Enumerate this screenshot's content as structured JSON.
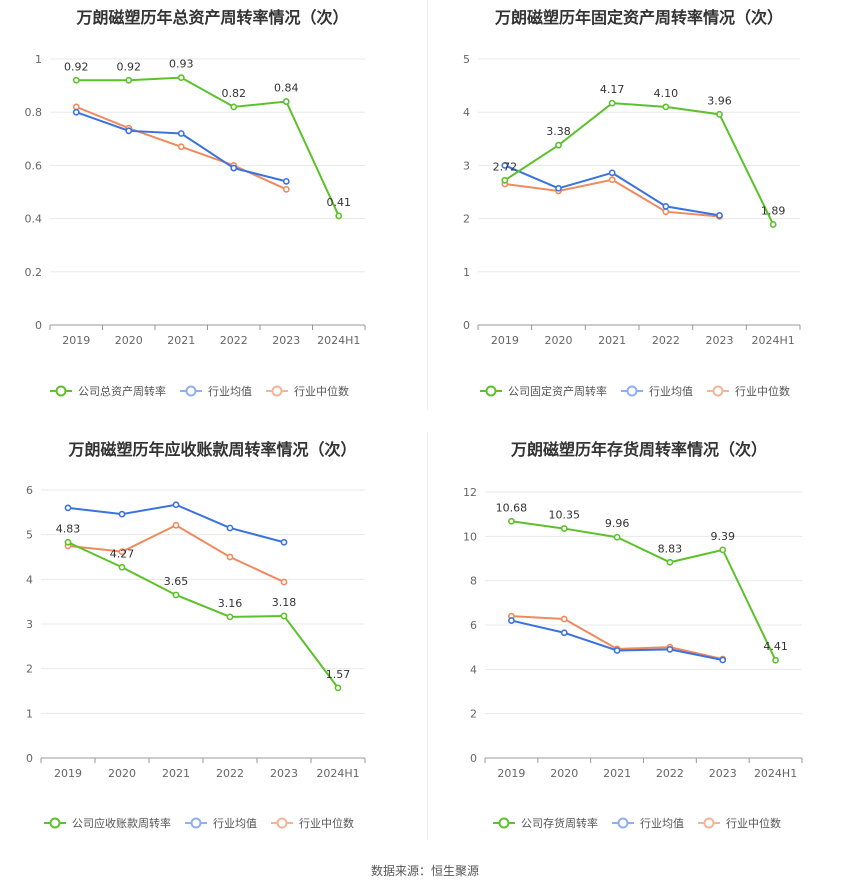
{
  "source": "数据来源：恒生聚源",
  "colors": {
    "company": "#5cc12a",
    "avg": "#3a73e0",
    "median": "#f08a5d"
  },
  "chart_data": [
    {
      "type": "line",
      "title": "万朗磁塑历年总资产周转率情况（次）",
      "categories": [
        "2019",
        "2020",
        "2021",
        "2022",
        "2023",
        "2024H1"
      ],
      "ylim": [
        0,
        1
      ],
      "yticks": [
        "0",
        "0.2",
        "0.4",
        "0.6",
        "0.8",
        "1"
      ],
      "ytick_values": [
        0,
        0.2,
        0.4,
        0.6,
        0.8,
        1
      ],
      "series": [
        {
          "name": "公司总资产周转率",
          "key": "company",
          "values": [
            0.92,
            0.92,
            0.93,
            0.82,
            0.84,
            0.41
          ],
          "labels": [
            "0.92",
            "0.92",
            "0.93",
            "0.82",
            "0.84",
            "0.41"
          ]
        },
        {
          "name": "行业均值",
          "key": "avg",
          "values": [
            0.8,
            0.73,
            0.72,
            0.59,
            0.54,
            null
          ]
        },
        {
          "name": "行业中位数",
          "key": "median",
          "values": [
            0.82,
            0.74,
            0.67,
            0.6,
            0.51,
            null
          ]
        }
      ]
    },
    {
      "type": "line",
      "title": "万朗磁塑历年固定资产周转率情况（次）",
      "categories": [
        "2019",
        "2020",
        "2021",
        "2022",
        "2023",
        "2024H1"
      ],
      "ylim": [
        0,
        5
      ],
      "yticks": [
        "0",
        "1",
        "2",
        "3",
        "4",
        "5"
      ],
      "ytick_values": [
        0,
        1,
        2,
        3,
        4,
        5
      ],
      "series": [
        {
          "name": "公司固定资产周转率",
          "key": "company",
          "values": [
            2.72,
            3.38,
            4.17,
            4.1,
            3.96,
            1.89
          ],
          "labels": [
            "2.72",
            "3.38",
            "4.17",
            "4.10",
            "3.96",
            "1.89"
          ]
        },
        {
          "name": "行业均值",
          "key": "avg",
          "values": [
            3.0,
            2.57,
            2.86,
            2.23,
            2.06,
            null
          ]
        },
        {
          "name": "行业中位数",
          "key": "median",
          "values": [
            2.65,
            2.52,
            2.73,
            2.13,
            2.04,
            null
          ]
        }
      ]
    },
    {
      "type": "line",
      "title": "万朗磁塑历年应收账款周转率情况（次）",
      "categories": [
        "2019",
        "2020",
        "2021",
        "2022",
        "2023",
        "2024H1"
      ],
      "ylim": [
        0,
        6
      ],
      "yticks": [
        "0",
        "1",
        "2",
        "3",
        "4",
        "5",
        "6"
      ],
      "ytick_values": [
        0,
        1,
        2,
        3,
        4,
        5,
        6
      ],
      "series": [
        {
          "name": "公司应收账款周转率",
          "key": "company",
          "values": [
            4.83,
            4.27,
            3.65,
            3.16,
            3.18,
            1.57
          ],
          "labels": [
            "4.83",
            "4.27",
            "3.65",
            "3.16",
            "3.18",
            "1.57"
          ]
        },
        {
          "name": "行业均值",
          "key": "avg",
          "values": [
            5.6,
            5.46,
            5.67,
            5.15,
            4.83,
            null
          ]
        },
        {
          "name": "行业中位数",
          "key": "median",
          "values": [
            4.75,
            4.62,
            5.21,
            4.5,
            3.94,
            null
          ]
        }
      ]
    },
    {
      "type": "line",
      "title": "万朗磁塑历年存货周转率情况（次）",
      "categories": [
        "2019",
        "2020",
        "2021",
        "2022",
        "2023",
        "2024H1"
      ],
      "ylim": [
        0,
        12
      ],
      "yticks": [
        "0",
        "2",
        "4",
        "6",
        "8",
        "10",
        "12"
      ],
      "ytick_values": [
        0,
        2,
        4,
        6,
        8,
        10,
        12
      ],
      "series": [
        {
          "name": "公司存货周转率",
          "key": "company",
          "values": [
            10.68,
            10.35,
            9.96,
            8.83,
            9.39,
            4.41
          ],
          "labels": [
            "10.68",
            "10.35",
            "9.96",
            "8.83",
            "9.39",
            "4.41"
          ]
        },
        {
          "name": "行业均值",
          "key": "avg",
          "values": [
            6.2,
            5.65,
            4.85,
            4.9,
            4.42,
            null
          ]
        },
        {
          "name": "行业中位数",
          "key": "median",
          "values": [
            6.4,
            6.27,
            4.92,
            5.0,
            4.46,
            null
          ]
        }
      ]
    }
  ]
}
